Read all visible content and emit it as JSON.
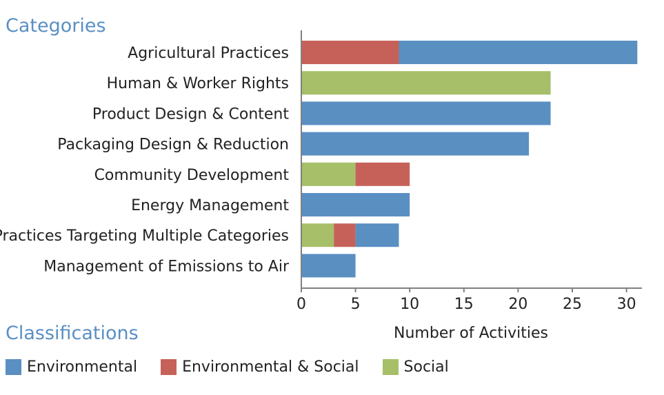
{
  "categories_heading": "Categories",
  "classifications_heading": "Classifications",
  "chart_data": {
    "type": "bar",
    "orientation": "horizontal",
    "stacked": true,
    "categories": [
      "Agricultural Practices",
      "Human & Worker Rights",
      "Product Design & Content",
      "Packaging Design & Reduction",
      "Community Development",
      "Energy Management",
      "Practices Targeting Multiple Categories",
      "Management of Emissions to Air"
    ],
    "series": [
      {
        "name": "Social",
        "color": "#a6bf68",
        "values": [
          0,
          23,
          0,
          0,
          5,
          0,
          3,
          0
        ]
      },
      {
        "name": "Environmental & Social",
        "color": "#c6615a",
        "values": [
          9,
          0,
          0,
          0,
          5,
          0,
          2,
          0
        ]
      },
      {
        "name": "Environmental",
        "color": "#5a8fc2",
        "values": [
          22,
          0,
          23,
          21,
          0,
          10,
          4,
          5
        ]
      }
    ],
    "xlabel": "Number of Activities",
    "xlim": [
      0,
      31.5
    ],
    "xticks": [
      "0",
      "5",
      "10",
      "15",
      "20",
      "25",
      "30"
    ],
    "grid": false
  },
  "legend": [
    {
      "label": "Environmental",
      "color": "#5a8fc2"
    },
    {
      "label": "Environmental & Social",
      "color": "#c6615a"
    },
    {
      "label": "Social",
      "color": "#a6bf68"
    }
  ]
}
